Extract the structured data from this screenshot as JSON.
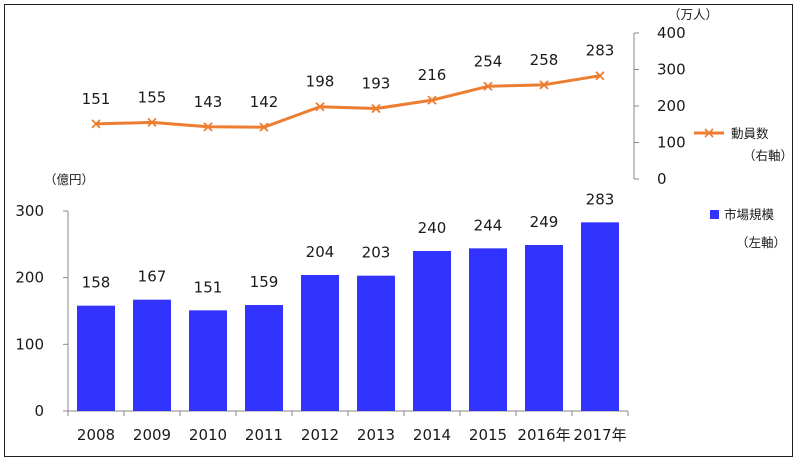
{
  "chart_data": [
    {
      "type": "line",
      "categories": [
        "2008",
        "2009",
        "2010",
        "2011",
        "2012",
        "2013",
        "2014",
        "2015",
        "2016年",
        "2017年"
      ],
      "series": [
        {
          "name": "動員数",
          "values": [
            151,
            155,
            143,
            142,
            198,
            193,
            216,
            254,
            258,
            283
          ],
          "color": "#ed7d31"
        }
      ],
      "axis_side": "right",
      "unit_label": "（万人）",
      "axis_note": "（右軸）",
      "ylim": [
        0,
        400
      ],
      "yticks": [
        0,
        100,
        200,
        300,
        400
      ],
      "data_labels": [
        "151",
        "155",
        "143",
        "142",
        "198",
        "193",
        "216",
        "254",
        "258",
        "283"
      ],
      "grid": false,
      "legend_position": "right"
    },
    {
      "type": "bar",
      "categories": [
        "2008",
        "2009",
        "2010",
        "2011",
        "2012",
        "2013",
        "2014",
        "2015",
        "2016年",
        "2017年"
      ],
      "series": [
        {
          "name": "市場規模",
          "values": [
            158,
            167,
            151,
            159,
            204,
            203,
            240,
            244,
            249,
            283
          ],
          "color": "#3333ff"
        }
      ],
      "axis_side": "left",
      "unit_label": "（億円）",
      "axis_note": "（左軸）",
      "ylim": [
        0,
        300
      ],
      "yticks": [
        0,
        100,
        200,
        300
      ],
      "data_labels": [
        "158",
        "167",
        "151",
        "159",
        "204",
        "203",
        "240",
        "244",
        "249",
        "283"
      ],
      "grid": false,
      "legend_position": "right"
    }
  ]
}
